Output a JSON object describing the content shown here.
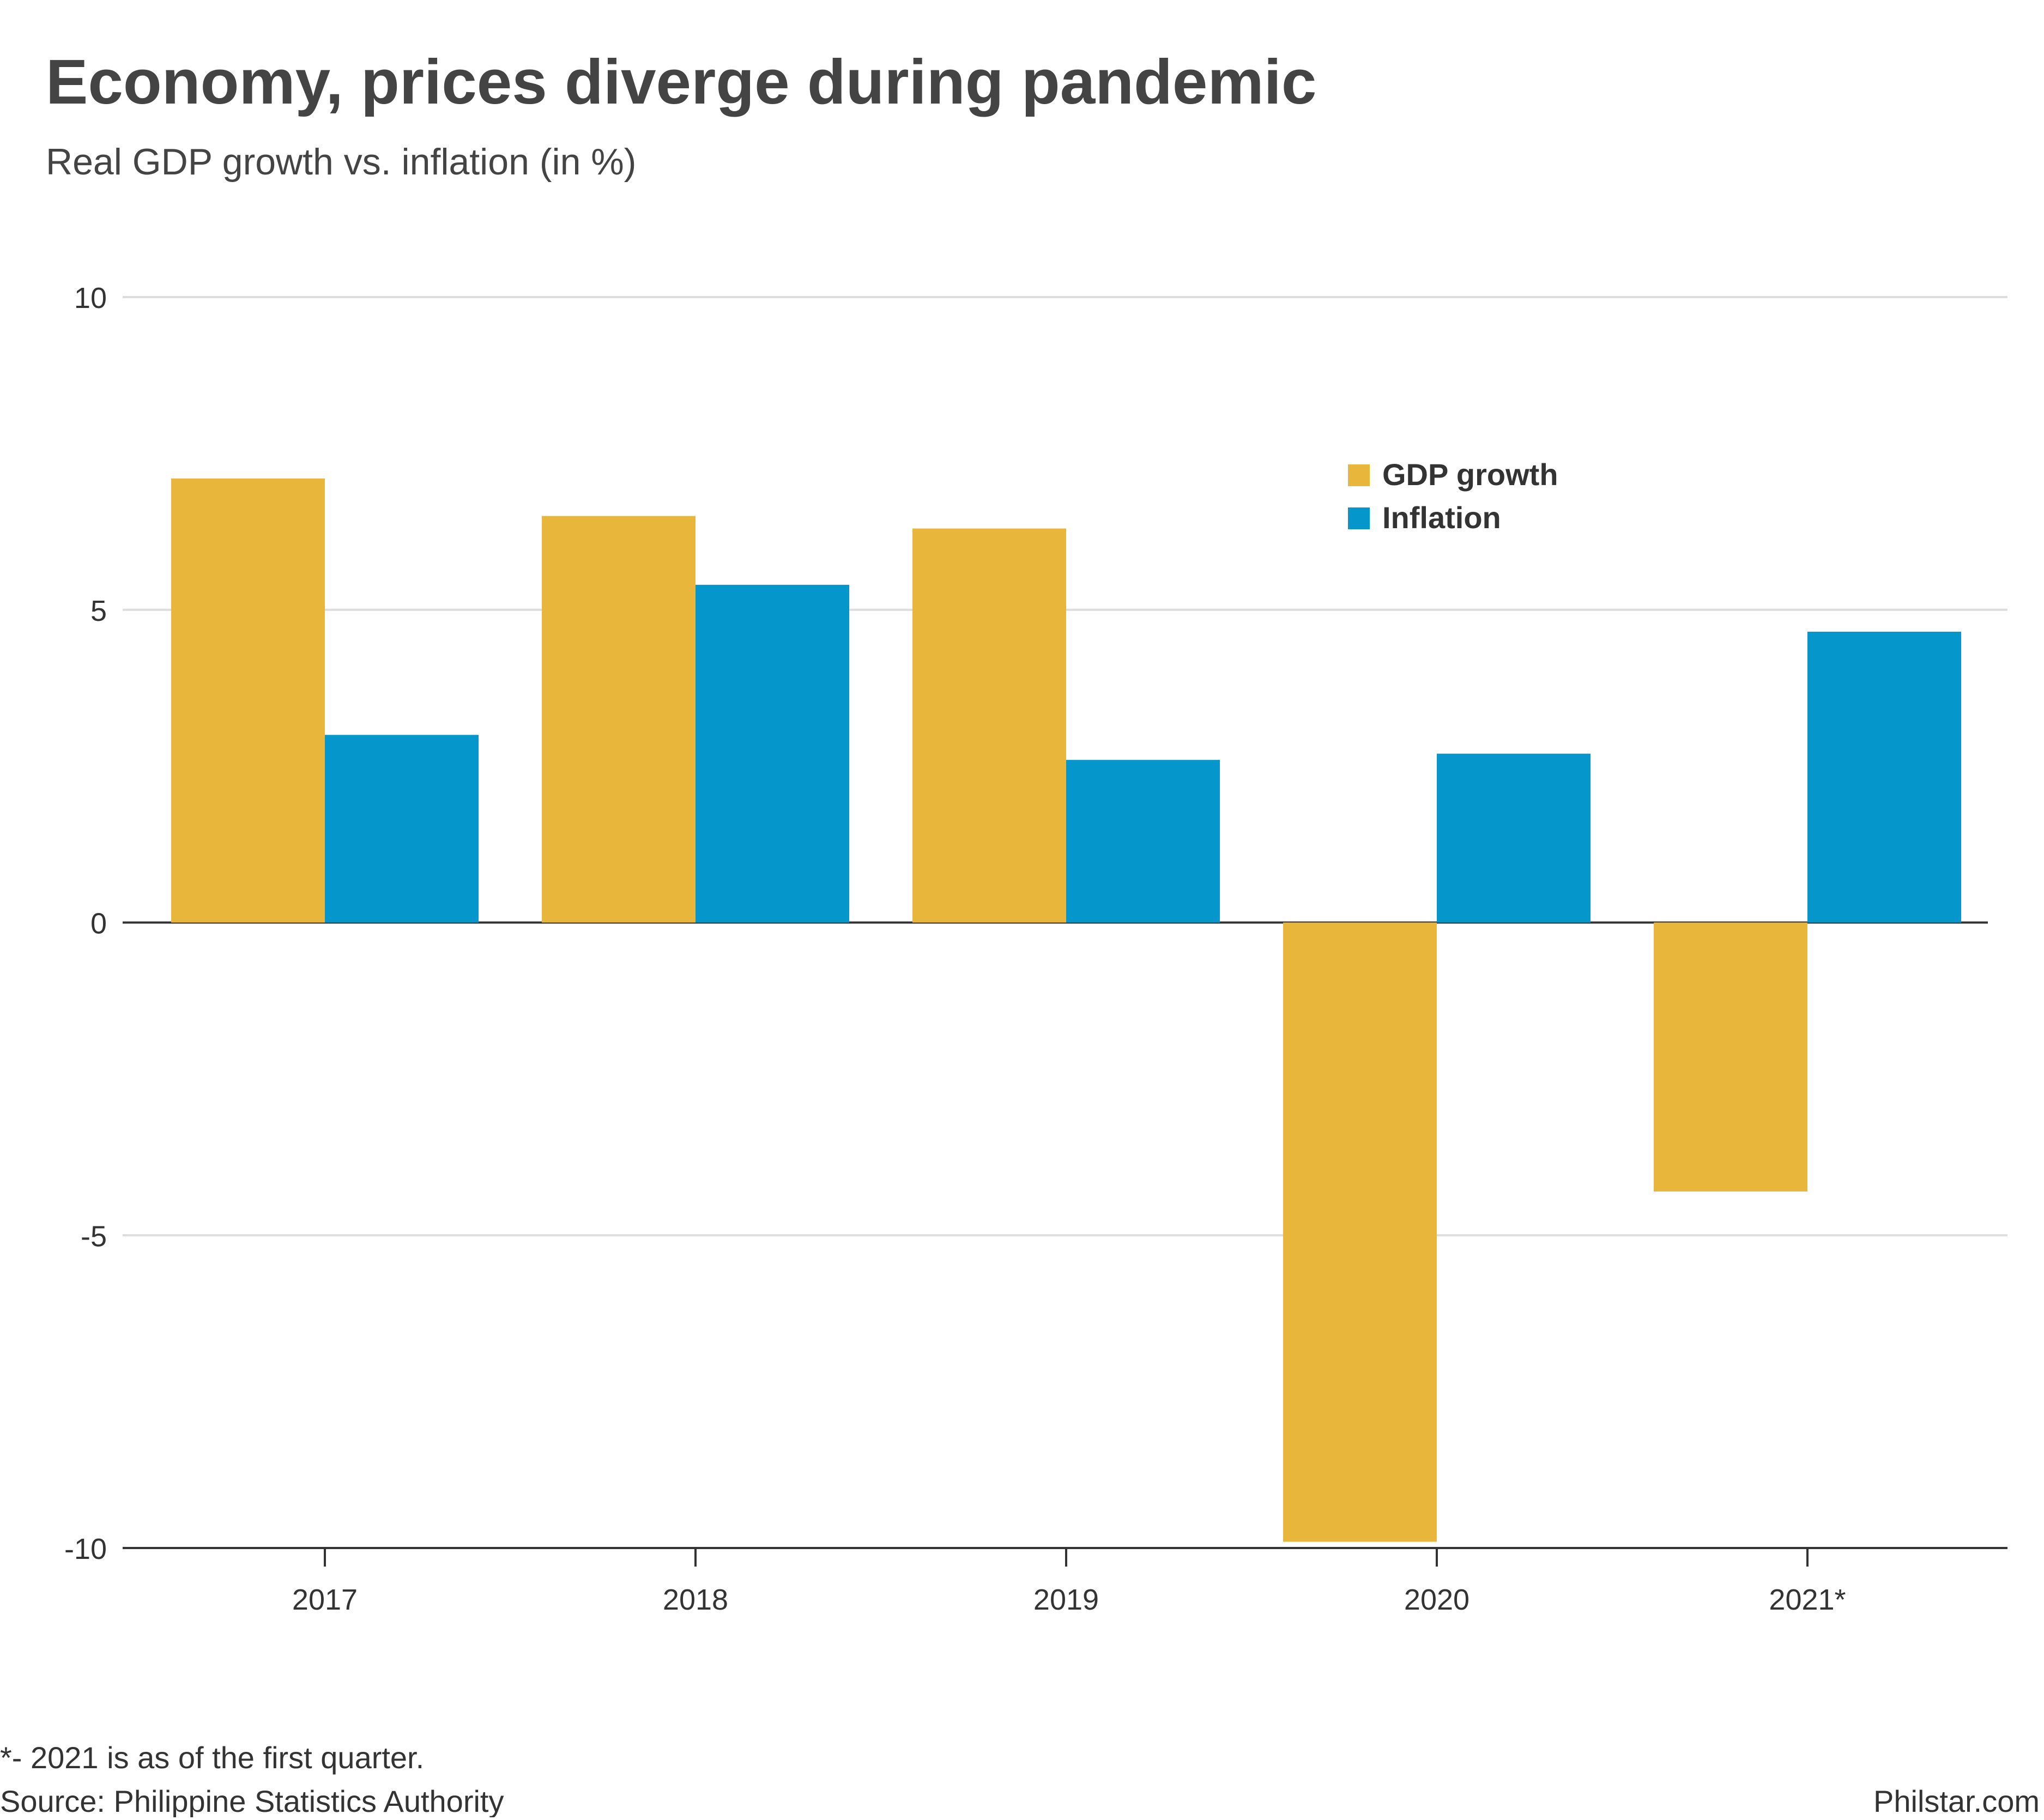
{
  "chart_data": {
    "type": "bar",
    "title": "Economy, prices diverge during pandemic",
    "subtitle": "Real GDP growth vs. inflation (in %)",
    "categories": [
      "2017",
      "2018",
      "2019",
      "2020",
      "2021*"
    ],
    "series": [
      {
        "name": "GDP growth",
        "color": "#E8B63A",
        "values": [
          7.1,
          6.5,
          6.3,
          -9.9,
          -4.3
        ]
      },
      {
        "name": "Inflation",
        "color": "#0597CC",
        "values": [
          3.0,
          5.4,
          2.6,
          2.7,
          4.65
        ]
      }
    ],
    "xlabel": "",
    "ylabel": "",
    "ylim": [
      -10,
      10
    ],
    "yticks": [
      10,
      5,
      0,
      -5,
      -10
    ],
    "ytick_labels": [
      "10",
      "5",
      "0",
      "-5",
      "-10"
    ],
    "grid": true,
    "legend_position": "top-right"
  },
  "footnote": "*- 2021 is as of the first quarter.",
  "source": "Source: Philippine Statistics Authority",
  "credit": "Philstar.com",
  "colors": {
    "gdp": "#E8B63A",
    "inflation": "#0597CC",
    "grid": "#DDDDDD",
    "axis": "#333333",
    "text": "#333333"
  }
}
